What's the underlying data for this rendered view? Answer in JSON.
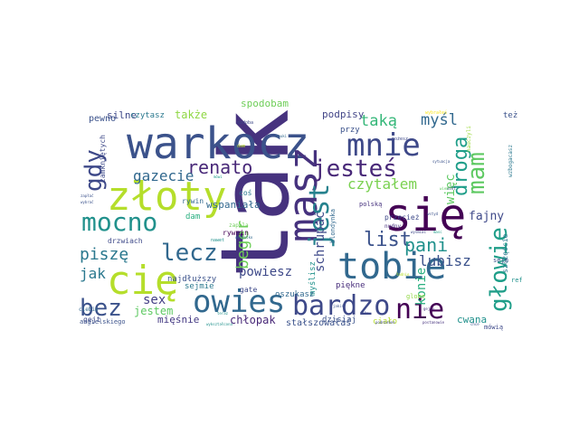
{
  "words": [
    {
      "text": "tak",
      "color": "#46327e"
    },
    {
      "text": "warkocz",
      "color": "#3b528b"
    },
    {
      "text": "złoty",
      "color": "#b5de2b"
    },
    {
      "text": "się",
      "color": "#440154"
    },
    {
      "text": "masz",
      "color": "#46327e"
    },
    {
      "text": "cię",
      "color": "#b5de2b"
    },
    {
      "text": "tobie",
      "color": "#31688e"
    },
    {
      "text": "mnie",
      "color": "#3e4989"
    },
    {
      "text": "mocno",
      "color": "#21918c"
    },
    {
      "text": "owies",
      "color": "#31688e"
    },
    {
      "text": "jesteś",
      "color": "#482878"
    },
    {
      "text": "bardzo",
      "color": "#3e4989"
    },
    {
      "text": "nie",
      "color": "#440154"
    },
    {
      "text": "jest",
      "color": "#26828e"
    },
    {
      "text": "głowie",
      "color": "#1f9e89"
    },
    {
      "text": "mam",
      "color": "#5ec962"
    },
    {
      "text": "lecz",
      "color": "#31688e"
    },
    {
      "text": "bez",
      "color": "#3b528b"
    },
    {
      "text": "gdy",
      "color": "#3e4989"
    },
    {
      "text": "droga",
      "color": "#1f9e89"
    },
    {
      "text": "renato",
      "color": "#482878"
    },
    {
      "text": "list",
      "color": "#3b528b"
    },
    {
      "text": "pani",
      "color": "#21918c"
    },
    {
      "text": "beger",
      "color": "#6ece58"
    },
    {
      "text": "piszę",
      "color": "#2a788e"
    },
    {
      "text": "gazecie",
      "color": "#31688e"
    },
    {
      "text": "czytałem",
      "color": "#7ad151"
    },
    {
      "text": "taką",
      "color": "#35b779"
    },
    {
      "text": "myśl",
      "color": "#31688e"
    },
    {
      "text": "lubisz",
      "color": "#3b528b"
    },
    {
      "text": "jak",
      "color": "#2a788e"
    },
    {
      "text": "powiesz",
      "color": "#3e4989"
    },
    {
      "text": "sex",
      "color": "#433e85"
    },
    {
      "text": "schrupać",
      "color": "#3e4989"
    },
    {
      "text": "konie",
      "color": "#29af7f"
    },
    {
      "text": "więc",
      "color": "#5ec962"
    },
    {
      "text": "fajny",
      "color": "#3e4989"
    },
    {
      "text": "chłopak",
      "color": "#482878"
    },
    {
      "text": "jestem",
      "color": "#5ec962"
    },
    {
      "text": "cwana",
      "color": "#21918c"
    },
    {
      "text": "mięśnie",
      "color": "#443983"
    },
    {
      "text": "także",
      "color": "#8fd744"
    },
    {
      "text": "spodobam",
      "color": "#6ece58"
    },
    {
      "text": "podpisy",
      "color": "#414487"
    },
    {
      "text": "silne",
      "color": "#3e4989"
    },
    {
      "text": "pewno",
      "color": "#3b528b"
    },
    {
      "text": "czytasz",
      "color": "#2a788e"
    },
    {
      "text": "wspaniała",
      "color": "#31688e"
    },
    {
      "text": "rywin",
      "color": "#31688e"
    },
    {
      "text": "rywnin",
      "color": "#440154"
    },
    {
      "text": "dam",
      "color": "#29af7f"
    },
    {
      "text": "coś",
      "color": "#2a788e"
    },
    {
      "text": "gate",
      "color": "#3e4989"
    },
    {
      "text": "myślisz",
      "color": "#21918c"
    },
    {
      "text": "piękne",
      "color": "#472d7b"
    },
    {
      "text": "sejmie",
      "color": "#2a788e"
    },
    {
      "text": "oszukasz",
      "color": "#31688e"
    },
    {
      "text": "dzisiaj",
      "color": "#3b528b"
    },
    {
      "text": "ciało",
      "color": "#b5de2b"
    },
    {
      "text": "stałszowałaś",
      "color": "#3b528b"
    },
    {
      "text": "najdłuższy",
      "color": "#3b528b"
    },
    {
      "text": "drzwiach",
      "color": "#3e4989"
    },
    {
      "text": "przy",
      "color": "#3b528b"
    },
    {
      "text": "też",
      "color": "#3b528b"
    },
    {
      "text": "szczęście",
      "color": "#2a788e"
    },
    {
      "text": "polską",
      "color": "#46327e"
    },
    {
      "text": "blondynka",
      "color": "#31688e"
    },
    {
      "text": "przecież",
      "color": "#3e4989"
    },
    {
      "text": "nudny",
      "color": "#46327e"
    },
    {
      "text": "sejm",
      "color": "#3b528b"
    },
    {
      "text": "gejt",
      "color": "#3e4989"
    },
    {
      "text": "angielskiego",
      "color": "#3b528b"
    },
    {
      "text": "ciebie",
      "color": "#31688e"
    },
    {
      "text": "zamkniętych",
      "color": "#3e4989"
    },
    {
      "text": "globe",
      "color": "#90d743"
    },
    {
      "text": "mówią",
      "color": "#3e4989"
    },
    {
      "text": "ref",
      "color": "#21918c"
    },
    {
      "text": "wzbogacasz",
      "color": "#2a788e"
    },
    {
      "text": "nauczyli",
      "color": "#9bd93c"
    },
    {
      "text": "dam",
      "color": "#b8de29"
    },
    {
      "text": "wybrałeś",
      "color": "#fde725"
    },
    {
      "text": "ozdoba",
      "color": "#3e4989"
    },
    {
      "text": "możesz",
      "color": "#3e4989"
    },
    {
      "text": "mówi",
      "color": "#1f9e89"
    },
    {
      "text": "nawet",
      "color": "#21918c"
    },
    {
      "text": "teraz",
      "color": "#21918c"
    },
    {
      "text": "nauki",
      "color": "#31688e"
    },
    {
      "text": "zapala",
      "color": "#6ece58"
    },
    {
      "text": "zapłać",
      "color": "#3b528b"
    },
    {
      "text": "wybrać",
      "color": "#3b528b"
    },
    {
      "text": "masc",
      "color": "#1f9e89"
    },
    {
      "text": "wyśmiać",
      "color": "#3e4989"
    },
    {
      "text": "ładnie",
      "color": "#b5de2b"
    },
    {
      "text": "postanowie",
      "color": "#46327e"
    },
    {
      "text": "gejtu",
      "color": "#46327e"
    },
    {
      "text": "sytuacja",
      "color": "#3b528b"
    },
    {
      "text": "nikt",
      "color": "#3e4989"
    },
    {
      "text": "wykształcona",
      "color": "#21918c"
    },
    {
      "text": "siła",
      "color": "#3e4989"
    },
    {
      "text": "wszystko",
      "color": "#31688e"
    },
    {
      "text": "podniebne",
      "color": "#3e4989"
    },
    {
      "text": "wiem",
      "color": "#5ec962"
    },
    {
      "text": "jakiś",
      "color": "#3b528b"
    },
    {
      "text": "wstyd",
      "color": "#3b528b"
    },
    {
      "text": "chce",
      "color": "#3b528b"
    }
  ]
}
